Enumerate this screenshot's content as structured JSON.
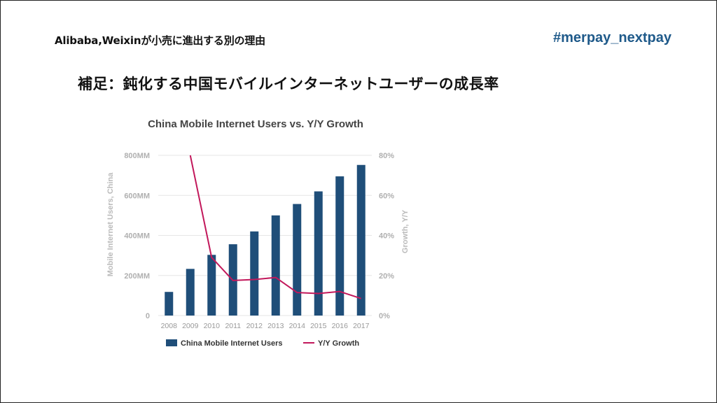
{
  "slide": {
    "header_left": "Alibaba,Weixinが小売に進出する別の理由",
    "header_right": "#merpay_nextpay",
    "subtitle": "補足：鈍化する中国モバイルインターネットユーザーの成長率"
  },
  "colors": {
    "bar": "#1f4e79",
    "line": "#c2185b",
    "grid": "#e6e6e6",
    "axis_text": "#b0b0b0",
    "title_text": "#444444"
  },
  "chart_data": {
    "type": "bar",
    "title": "China Mobile Internet Users vs. Y/Y Growth",
    "ylabel": "Mobile Internet Users, China",
    "y2label": "Growth, Y/Y",
    "categories": [
      "2008",
      "2009",
      "2010",
      "2011",
      "2012",
      "2013",
      "2014",
      "2015",
      "2016",
      "2017"
    ],
    "ylim": [
      0,
      800
    ],
    "y2lim": [
      0,
      80
    ],
    "y_ticks": [
      "0",
      "200MM",
      "400MM",
      "600MM",
      "800MM"
    ],
    "y_tick_values": [
      0,
      200,
      400,
      600,
      800
    ],
    "y2_ticks": [
      "0%",
      "20%",
      "40%",
      "60%",
      "80%"
    ],
    "y2_tick_values": [
      0,
      20,
      40,
      60,
      80
    ],
    "series": [
      {
        "name": "China Mobile Internet Users",
        "type": "bar",
        "axis": "left",
        "values": [
          118,
          233,
          303,
          356,
          420,
          500,
          557,
          620,
          695,
          752
        ]
      },
      {
        "name": "Y/Y Growth",
        "type": "line",
        "axis": "right",
        "values": [
          null,
          80,
          29,
          17.5,
          18,
          19,
          11.5,
          11,
          12,
          8.5
        ]
      }
    ],
    "legend_position": "bottom",
    "grid": true
  }
}
